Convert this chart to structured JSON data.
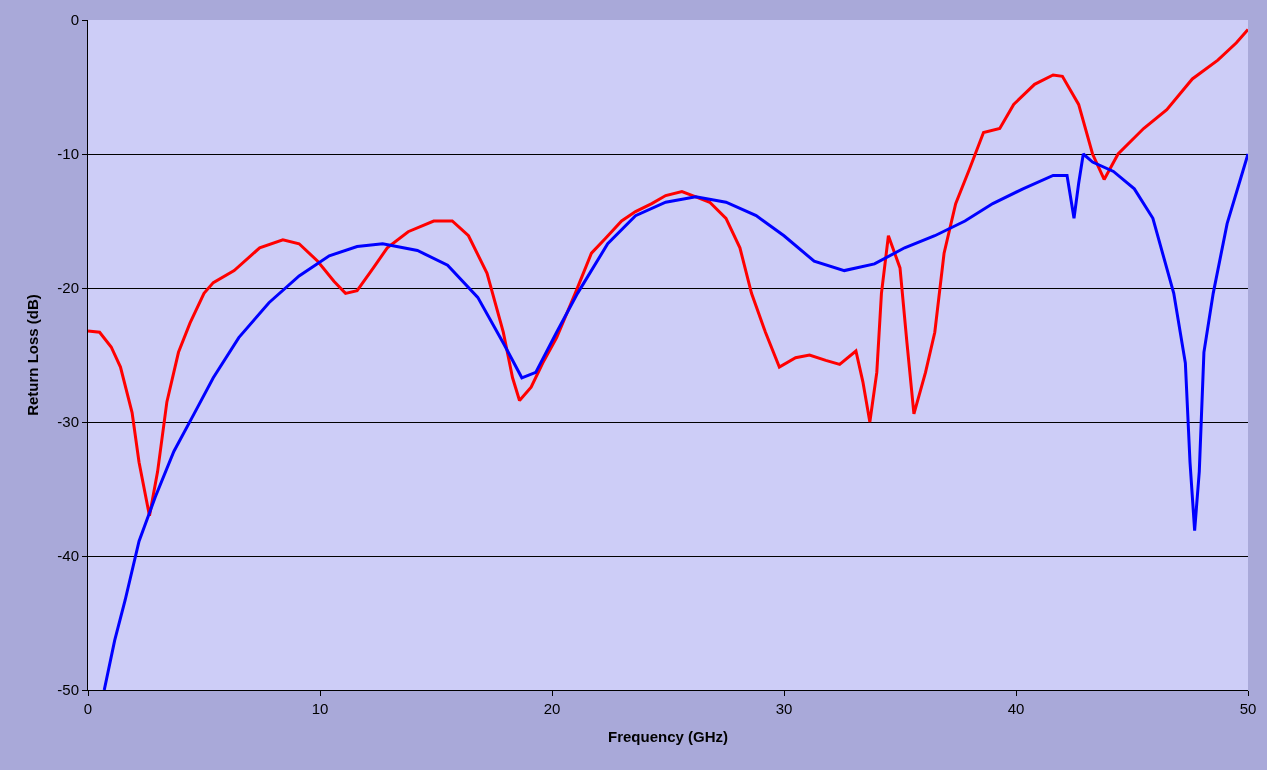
{
  "chart_data": {
    "type": "line",
    "xlabel": "Frequency (GHz)",
    "ylabel": "Return Loss (dB)",
    "xlim": [
      0,
      50
    ],
    "xticks": [
      0,
      10,
      20,
      30,
      40,
      50
    ],
    "ylim": [
      -50,
      0
    ],
    "yticks": [
      -50,
      -40,
      -30,
      -20,
      -10,
      0
    ],
    "grid": "y",
    "marker": "none",
    "line_style": "solid",
    "series": [
      {
        "color": "#ff0000",
        "x": [
          0,
          0.5,
          1.0,
          1.4,
          1.9,
          2.2,
          2.65,
          3.0,
          3.4,
          3.9,
          4.4,
          5.0,
          5.4,
          6.3,
          7.4,
          8.4,
          9.1,
          9.9,
          10.6,
          11.1,
          11.6,
          12.3,
          12.9,
          13.8,
          14.9,
          15.7,
          16.4,
          17.2,
          17.9,
          18.3,
          18.6,
          19.1,
          19.6,
          20.2,
          21,
          21.7,
          22.3,
          23,
          23.6,
          24.3,
          24.9,
          25.6,
          26.2,
          26.8,
          27.5,
          28.1,
          28.6,
          29.2,
          29.8,
          30.5,
          31.1,
          31.8,
          32.4,
          33.1,
          33.4,
          33.7,
          34,
          34.2,
          34.5,
          35,
          35.3,
          35.6,
          36.1,
          36.5,
          36.9,
          37.4,
          38,
          38.6,
          39.3,
          39.9,
          40.8,
          41.6,
          42,
          42.7,
          43.3,
          43.8,
          44.4,
          45.5,
          46.5,
          47.6,
          48.7,
          49.5,
          50
        ],
        "values": [
          -23.2,
          -23.3,
          -24.4,
          -25.9,
          -29.3,
          -33,
          -37,
          -33.7,
          -28.5,
          -24.8,
          -22.6,
          -20.4,
          -19.6,
          -18.7,
          -17,
          -16.4,
          -16.7,
          -18,
          -19.5,
          -20.4,
          -20.2,
          -18.5,
          -17,
          -15.8,
          -15,
          -15,
          -16.1,
          -18.9,
          -23.3,
          -26.7,
          -28.4,
          -27.4,
          -25.6,
          -23.7,
          -20.4,
          -17.4,
          -16.3,
          -15,
          -14.3,
          -13.7,
          -13.1,
          -12.8,
          -13.2,
          -13.6,
          -14.8,
          -17,
          -20.4,
          -23.3,
          -25.9,
          -25.2,
          -25,
          -25.4,
          -25.7,
          -24.7,
          -27,
          -30,
          -26.3,
          -20.4,
          -16.1,
          -18.5,
          -24.1,
          -29.4,
          -26.3,
          -23.3,
          -17.4,
          -13.7,
          -11.1,
          -8.4,
          -8.1,
          -6.3,
          -4.8,
          -4.1,
          -4.2,
          -6.3,
          -10,
          -11.9,
          -10,
          -8.1,
          -6.7,
          -4.4,
          -3,
          -1.7,
          -0.7
        ]
      },
      {
        "color": "#0000ff",
        "x": [
          0.7,
          1.15,
          1.6,
          2.2,
          2.9,
          3.7,
          4.6,
          5.4,
          6.5,
          7.8,
          9.1,
          10.4,
          11.6,
          12.7,
          14.2,
          15.5,
          16.8,
          17.9,
          18.7,
          19.3,
          20.2,
          21.1,
          22.4,
          23.6,
          24.9,
          26.2,
          27.5,
          28.8,
          30,
          31.3,
          32.6,
          33.9,
          35.2,
          36.5,
          37.8,
          39,
          40.3,
          41.6,
          42.2,
          42.5,
          42.7,
          42.9,
          43.3,
          44.2,
          45.1,
          45.9,
          46.8,
          47.3,
          47.5,
          47.7,
          47.9,
          48.1,
          48.5,
          49.1,
          50
        ],
        "values": [
          -50,
          -46.3,
          -43.3,
          -38.9,
          -35.6,
          -32.2,
          -29.3,
          -26.7,
          -23.7,
          -21.1,
          -19.1,
          -17.6,
          -16.9,
          -16.7,
          -17.2,
          -18.3,
          -20.7,
          -24.1,
          -26.7,
          -26.3,
          -23.3,
          -20.4,
          -16.7,
          -14.6,
          -13.6,
          -13.2,
          -13.6,
          -14.6,
          -16.1,
          -18,
          -18.7,
          -18.2,
          -17,
          -16.1,
          -15,
          -13.7,
          -12.6,
          -11.6,
          -11.6,
          -14.8,
          -12.2,
          -10,
          -10.6,
          -11.3,
          -12.6,
          -14.8,
          -20.4,
          -25.6,
          -33,
          -38.1,
          -33.7,
          -24.8,
          -20.4,
          -15.2,
          -10
        ]
      }
    ]
  }
}
